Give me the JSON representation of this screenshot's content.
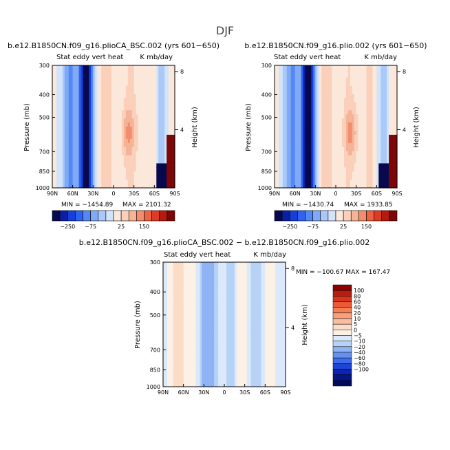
{
  "figure": {
    "title": "DJF"
  },
  "chart_data": [
    {
      "type": "heatmap",
      "title": "b.e12.B1850CN.f09_g16.plioCA_BSC.002 (yrs 601−650)",
      "left_string": "Stat eddy vert heat",
      "right_string": "K mb/day",
      "ylabel": "Pressure (mb)",
      "ylabel_right": "Height (km)",
      "x_ticks": [
        "90N",
        "60N",
        "30N",
        "0",
        "30S",
        "60S",
        "90S"
      ],
      "y_ticks": [
        "300",
        "400",
        "500",
        "700",
        "850",
        "1000"
      ],
      "y_right_ticks": [
        "8",
        "4"
      ],
      "ylim": [
        1000,
        300
      ],
      "y_scale": "log",
      "min": -1454.89,
      "max": 2101.32,
      "min_text": "MIN = −1454.89",
      "max_text": "MAX = 2101.32",
      "colorbar": {
        "orientation": "horizontal",
        "tick_labels": [
          "−250",
          "−75",
          "25",
          "150"
        ],
        "colors": [
          "#08084f",
          "#0a1fa6",
          "#1540d8",
          "#2f62ee",
          "#5588f4",
          "#80aaf6",
          "#aac8f8",
          "#d3e4fa",
          "#fbe8da",
          "#fad0bb",
          "#f5b397",
          "#f28d6d",
          "#ee6244",
          "#dd3b22",
          "#b51a10",
          "#7d0606"
        ]
      }
    },
    {
      "type": "heatmap",
      "title": "b.e12.B1850CN.f09_g16.plio.002 (yrs 601−650)",
      "left_string": "Stat eddy vert heat",
      "right_string": "K mb/day",
      "ylabel": "Pressure (mb)",
      "ylabel_right": "Height (km)",
      "x_ticks": [
        "90N",
        "60N",
        "30N",
        "0",
        "30S",
        "60S",
        "90S"
      ],
      "y_ticks": [
        "300",
        "400",
        "500",
        "700",
        "850",
        "1000"
      ],
      "y_right_ticks": [
        "8",
        "4"
      ],
      "ylim": [
        1000,
        300
      ],
      "y_scale": "log",
      "min": -1430.74,
      "max": 1933.85,
      "min_text": "MIN = −1430.74",
      "max_text": "MAX = 1933.85",
      "colorbar": {
        "orientation": "horizontal",
        "tick_labels": [
          "−250",
          "−75",
          "25",
          "150"
        ],
        "colors": [
          "#08084f",
          "#0a1fa6",
          "#1540d8",
          "#2f62ee",
          "#5588f4",
          "#80aaf6",
          "#aac8f8",
          "#d3e4fa",
          "#fbe8da",
          "#fad0bb",
          "#f5b397",
          "#f28d6d",
          "#ee6244",
          "#dd3b22",
          "#b51a10",
          "#7d0606"
        ]
      }
    },
    {
      "type": "heatmap",
      "title": "b.e12.B1850CN.f09_g16.plioCA_BSC.002 − b.e12.B1850CN.f09_g16.plio.002",
      "left_string": "Stat eddy vert heat",
      "right_string": "K mb/day",
      "ylabel": "Pressure (mb)",
      "ylabel_right": "Height (km)",
      "x_ticks": [
        "90N",
        "60N",
        "30N",
        "0",
        "30S",
        "60S",
        "90S"
      ],
      "y_ticks": [
        "300",
        "400",
        "500",
        "700",
        "850",
        "1000"
      ],
      "y_right_ticks": [
        "8",
        "4"
      ],
      "ylim": [
        1000,
        300
      ],
      "y_scale": "log",
      "min": -100.67,
      "max": 167.47,
      "stat_text": "MIN = −100.67   MAX = 167.47",
      "colorbar": {
        "orientation": "vertical",
        "tick_labels": [
          "100",
          "80",
          "60",
          "40",
          "20",
          "10",
          "5",
          "0",
          "−5",
          "−10",
          "−20",
          "−40",
          "−60",
          "−80",
          "−100"
        ],
        "colors": [
          "#8b0000",
          "#b81d12",
          "#d8351f",
          "#ec5a35",
          "#f47e56",
          "#f7a07c",
          "#f9bea0",
          "#fbdcc6",
          "#fdf0e4",
          "#dbe9fb",
          "#b7d2f7",
          "#8fb3f4",
          "#6590f0",
          "#3f6cea",
          "#1f45d8",
          "#0c24b2",
          "#061784",
          "#000b5e"
        ]
      }
    }
  ]
}
